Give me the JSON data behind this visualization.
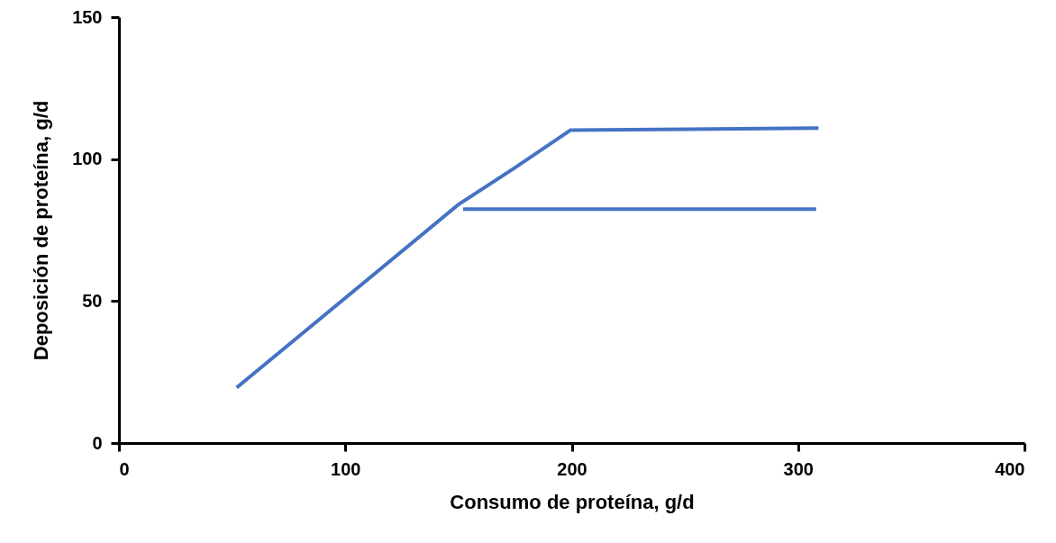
{
  "chart_data": {
    "type": "line",
    "xlabel": "Consumo de proteína, g/d",
    "ylabel": "Deposición de proteína, g/d",
    "xlim": [
      0,
      400
    ],
    "xticks": [
      0,
      100,
      200,
      300,
      400
    ],
    "ylim": [
      0,
      150
    ],
    "yticks": [
      0,
      50,
      100,
      150
    ],
    "series": [
      {
        "color": "#4472c4",
        "x": [
          52,
          150,
          175,
          200
        ],
        "values": [
          19.5,
          84,
          97,
          110.5
        ]
      },
      {
        "color": "#4472c4",
        "x": [
          200,
          309
        ],
        "values": [
          110.2,
          110.9
        ]
      },
      {
        "color": "#4472c4",
        "x": [
          152,
          308
        ],
        "values": [
          82.4,
          82.4
        ]
      }
    ]
  }
}
